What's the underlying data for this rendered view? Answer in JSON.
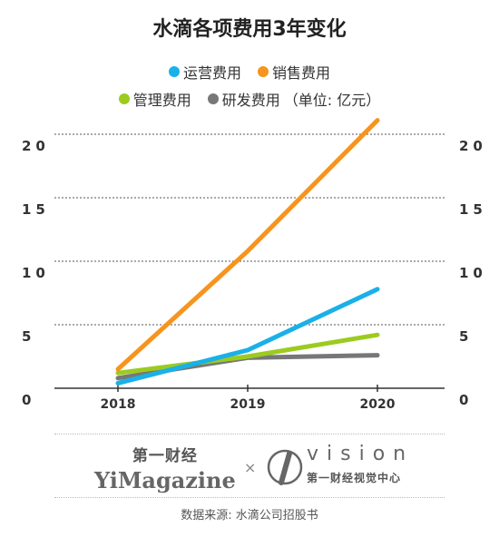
{
  "chart_data": {
    "type": "line",
    "title": "水滴各项费用3年变化",
    "x": [
      "2018",
      "2019",
      "2020"
    ],
    "series": [
      {
        "name": "运营费用",
        "color": "#1ab0e8",
        "values": [
          0.4,
          3.0,
          7.8
        ]
      },
      {
        "name": "销售费用",
        "color": "#f7941d",
        "values": [
          1.5,
          10.8,
          21.1
        ]
      },
      {
        "name": "管理费用",
        "color": "#9ccb1f",
        "values": [
          1.2,
          2.5,
          4.2
        ]
      },
      {
        "name": "研发费用",
        "color": "#777777",
        "values": [
          0.8,
          2.4,
          2.6
        ]
      }
    ],
    "unit_note": "（单位: 亿元）",
    "ylim": [
      0,
      20
    ],
    "yticks": [
      "0",
      "5",
      "10",
      "15",
      "20"
    ],
    "grid": true
  },
  "brand": {
    "left_cn": "第一财经",
    "left_en": "YiMagazine",
    "separator": "×",
    "right_en": "vision",
    "right_cn": "第一财经视觉中心"
  },
  "source": "数据来源: 水滴公司招股书"
}
